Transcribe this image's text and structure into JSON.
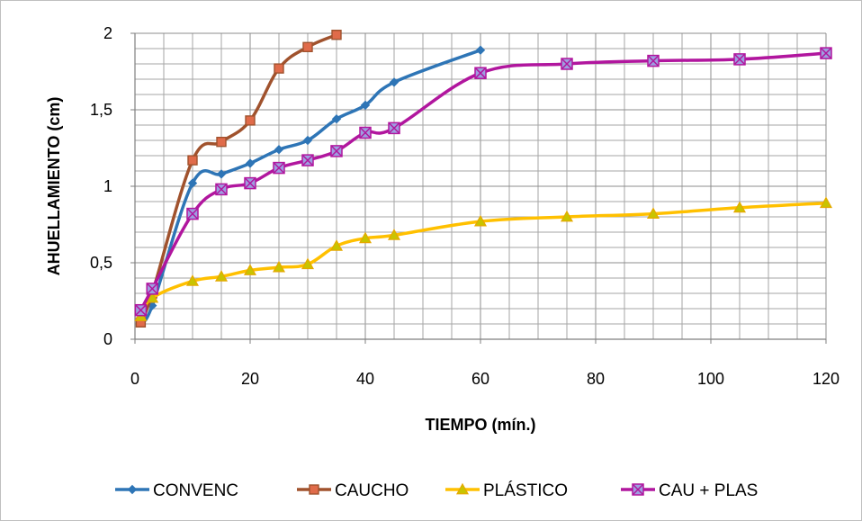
{
  "chart_data": {
    "type": "line",
    "title": "",
    "xlabel": "TIEMPO (mín.)",
    "ylabel": "AHUELLAMIENTO (cm)",
    "xlim": [
      0,
      120
    ],
    "ylim": [
      0,
      2
    ],
    "x_ticks": [
      "0",
      "20",
      "40",
      "60",
      "80",
      "100",
      "120"
    ],
    "y_ticks": [
      "0",
      "0,5",
      "1",
      "1,5",
      "2"
    ],
    "grid": true,
    "legend_position": "bottom",
    "series": [
      {
        "name": "CONVENC",
        "color": "#2E75B6",
        "marker": "diamond",
        "x": [
          1,
          3,
          10,
          15,
          20,
          25,
          30,
          35,
          40,
          45,
          60
        ],
        "y": [
          0.12,
          0.22,
          1.02,
          1.08,
          1.15,
          1.24,
          1.3,
          1.44,
          1.53,
          1.68,
          1.89
        ]
      },
      {
        "name": "CAUCHO",
        "color": "#A0522D",
        "marker": "square",
        "x": [
          1,
          3,
          10,
          15,
          20,
          25,
          30,
          35
        ],
        "y": [
          0.11,
          0.3,
          1.17,
          1.29,
          1.43,
          1.77,
          1.91,
          1.99
        ]
      },
      {
        "name": "PLÁSTICO",
        "color": "#FFC000",
        "marker": "triangle",
        "x": [
          1,
          3,
          10,
          15,
          20,
          25,
          30,
          35,
          40,
          45,
          60,
          75,
          90,
          105,
          120
        ],
        "y": [
          0.15,
          0.27,
          0.38,
          0.41,
          0.45,
          0.47,
          0.49,
          0.61,
          0.66,
          0.68,
          0.77,
          0.8,
          0.82,
          0.86,
          0.89
        ]
      },
      {
        "name": "CAU + PLAS",
        "color": "#B1169E",
        "marker": "square-x",
        "x": [
          1,
          3,
          10,
          15,
          20,
          25,
          30,
          35,
          40,
          45,
          60,
          75,
          90,
          105,
          120
        ],
        "y": [
          0.19,
          0.33,
          0.82,
          0.98,
          1.02,
          1.12,
          1.17,
          1.23,
          1.35,
          1.38,
          1.74,
          1.8,
          1.82,
          1.83,
          1.87
        ]
      }
    ]
  }
}
